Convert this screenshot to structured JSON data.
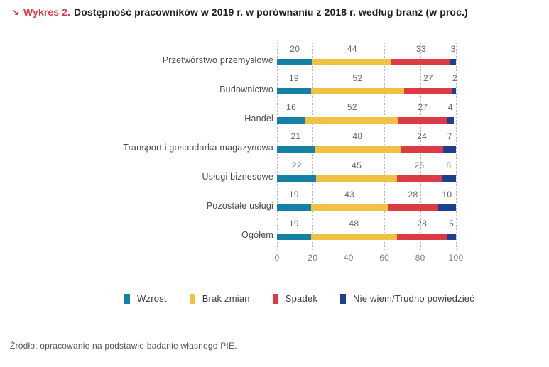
{
  "title": {
    "arrow": "↘",
    "label": "Wykres 2.",
    "text": "Dostępność pracowników w 2019 r. w porównaniu z 2018 r. według branż (w proc.)"
  },
  "chart_data": {
    "type": "bar",
    "orientation": "horizontal",
    "stacked": true,
    "title": "Dostępność pracowników w 2019 r. w porównaniu z 2018 r. według branż (w proc.)",
    "categories": [
      "Przetwórstwo przemysłowe",
      "Budownictwo",
      "Handel",
      "Transport i gospodarka magazynowa",
      "Usługi biznesowe",
      "Pozostałe usługi",
      "Ogółem"
    ],
    "series": [
      {
        "name": "Wzrost",
        "color": "#1380a4",
        "values": [
          20,
          19,
          16,
          21,
          22,
          19,
          19
        ]
      },
      {
        "name": "Brak zmian",
        "color": "#f0c243",
        "values": [
          44,
          52,
          52,
          48,
          45,
          43,
          48
        ]
      },
      {
        "name": "Spadek",
        "color": "#dc3a45",
        "values": [
          33,
          27,
          27,
          24,
          25,
          28,
          28
        ]
      },
      {
        "name": "Nie wiem/Trudno powiedzieć",
        "color": "#1e3e90",
        "values": [
          3,
          2,
          4,
          7,
          8,
          10,
          5
        ]
      }
    ],
    "x_ticks": [
      0,
      20,
      40,
      60,
      80,
      100
    ],
    "xlim": [
      0,
      100
    ],
    "grid": "vertical-dotted",
    "legend_position": "bottom"
  },
  "colors": {
    "title_accent": "#df3b46",
    "grid": "#b8b8b8"
  },
  "source": "Źródło: opracowanie na podstawie badanie własnego PIE."
}
